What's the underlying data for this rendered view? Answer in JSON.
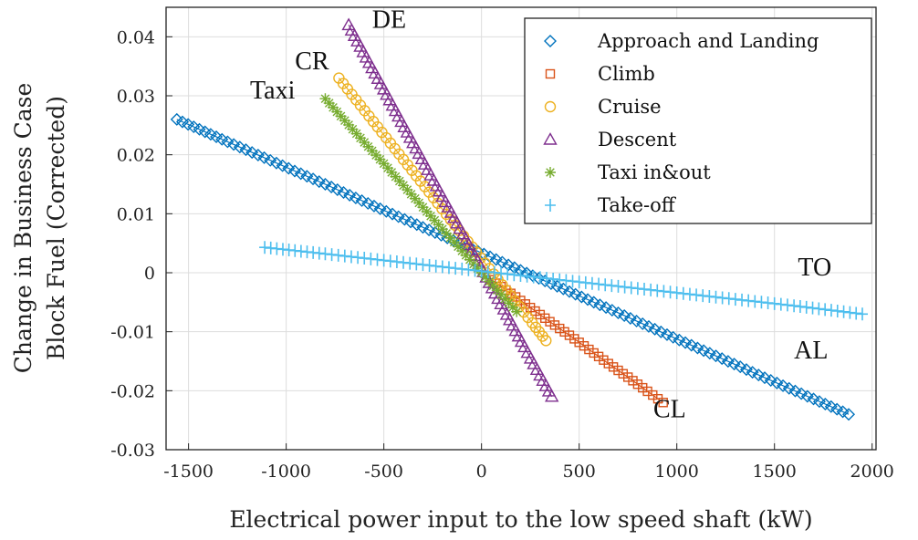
{
  "chart_data": {
    "type": "scatter",
    "title": "",
    "xlabel": "Electrical power input to the low speed shaft (kW)",
    "ylabel": [
      "Change in Business Case",
      "Block Fuel (Corrected)"
    ],
    "xlim": [
      -1615,
      2020
    ],
    "ylim": [
      -0.03,
      0.045
    ],
    "xticks": [
      -1500,
      -1000,
      -500,
      0,
      500,
      1000,
      1500,
      2000
    ],
    "xtick_labels": [
      "-1500",
      "-1000",
      "-500",
      "0",
      "500",
      "1000",
      "1500",
      "2000"
    ],
    "yticks": [
      -0.03,
      -0.02,
      -0.01,
      0,
      0.01,
      0.02,
      0.03,
      0.04
    ],
    "ytick_labels": [
      "-0.03",
      "-0.02",
      "-0.01",
      "0",
      "0.01",
      "0.02",
      "0.03",
      "0.04"
    ],
    "grid": true,
    "legend_position": "top-right",
    "series": [
      {
        "name": "Approach and Landing",
        "short": "AL",
        "marker": "diamond",
        "color": "#0072BD",
        "x": [
          -1560,
          -1300,
          -1050,
          -800,
          -550,
          -300,
          -50,
          200,
          450,
          700,
          950,
          1200,
          1450,
          1700,
          1880
        ],
        "y": [
          0.026,
          0.0222,
          0.0186,
          0.015,
          0.0113,
          0.0077,
          0.0041,
          0.0004,
          -0.0032,
          -0.0068,
          -0.0105,
          -0.0141,
          -0.0178,
          -0.0214,
          -0.024
        ]
      },
      {
        "name": "Climb",
        "short": "CL",
        "marker": "square",
        "color": "#D95319",
        "x": [
          50,
          150,
          250,
          350,
          450,
          550,
          650,
          750,
          850,
          930
        ],
        "y": [
          -0.0012,
          -0.0035,
          -0.0059,
          -0.0083,
          -0.0106,
          -0.013,
          -0.0154,
          -0.0177,
          -0.0201,
          -0.022
        ]
      },
      {
        "name": "Cruise",
        "short": "CR",
        "marker": "circle",
        "color": "#EDB120",
        "x": [
          -730,
          -620,
          -510,
          -400,
          -290,
          -180,
          -70,
          40,
          150,
          260,
          330
        ],
        "y": [
          0.033,
          0.0284,
          0.0238,
          0.0192,
          0.0146,
          0.0099,
          0.0053,
          0.0007,
          -0.0039,
          -0.0085,
          -0.0115
        ]
      },
      {
        "name": "Descent",
        "short": "DE",
        "marker": "triangle",
        "color": "#7E2F8E",
        "x": [
          -680,
          -590,
          -500,
          -410,
          -320,
          -230,
          -140,
          -50,
          40,
          130,
          220,
          300,
          360
        ],
        "y": [
          0.042,
          0.0365,
          0.0311,
          0.0256,
          0.0202,
          0.0147,
          0.0093,
          0.0038,
          -0.0017,
          -0.0071,
          -0.0126,
          -0.0174,
          -0.021
        ]
      },
      {
        "name": "Taxi in&out",
        "short": "Taxi",
        "marker": "asterisk",
        "color": "#77AC30",
        "x": [
          -800,
          -700,
          -600,
          -500,
          -400,
          -300,
          -200,
          -100,
          0,
          100,
          180
        ],
        "y": [
          0.0295,
          0.0258,
          0.0221,
          0.0185,
          0.0148,
          0.0111,
          0.0074,
          0.0037,
          0,
          -0.0037,
          -0.0066
        ]
      },
      {
        "name": "Take-off",
        "short": "TO",
        "marker": "plus",
        "color": "#4DBEEE",
        "x": [
          -1110,
          -800,
          -500,
          -200,
          100,
          400,
          700,
          1000,
          1300,
          1600,
          1950
        ],
        "y": [
          0.0043,
          0.0032,
          0.0021,
          0.001,
          -0.0001,
          -0.0012,
          -0.0023,
          -0.0034,
          -0.0045,
          -0.0056,
          -0.007
        ]
      }
    ],
    "annotations": [
      {
        "text": "DE",
        "x": -560,
        "y": 0.0415
      },
      {
        "text": "CR",
        "x": -955,
        "y": 0.0345
      },
      {
        "text": "Taxi",
        "x": -1185,
        "y": 0.0295
      },
      {
        "text": "TO",
        "x": 1620,
        "y": -0.0005
      },
      {
        "text": "AL",
        "x": 1600,
        "y": -0.0145
      },
      {
        "text": "CL",
        "x": 880,
        "y": -0.0245
      }
    ]
  }
}
